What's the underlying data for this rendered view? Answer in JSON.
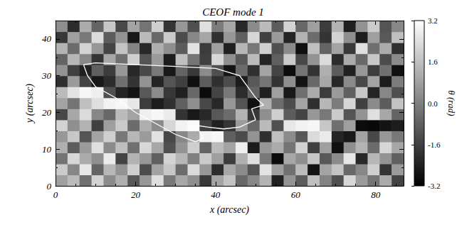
{
  "chart_data": {
    "type": "heatmap",
    "title": "CEOF mode 1",
    "x_label": "x (arcsec)",
    "y_label": "y (arcsec)",
    "xlim": [
      0,
      87
    ],
    "ylim": [
      0,
      45
    ],
    "xticks": [
      0,
      20,
      40,
      60,
      80
    ],
    "yticks": [
      0,
      10,
      20,
      30,
      40
    ],
    "cells": {
      "x": [
        1.5,
        4.5,
        7.5,
        10.5,
        13.5,
        16.5,
        19.5,
        22.5,
        25.5,
        28.5,
        31.5,
        34.5,
        37.5,
        40.5,
        43.5,
        46.5,
        49.5,
        52.5,
        55.5,
        58.5,
        61.5,
        64.5,
        67.5,
        70.5,
        73.5,
        76.5,
        79.5,
        82.5,
        85.5
      ],
      "y": [
        1.5,
        4.5,
        7.5,
        10.5,
        13.5,
        16.5,
        19.5,
        22.5,
        25.5,
        28.5,
        31.5,
        34.5,
        37.5,
        40.5,
        43.5
      ],
      "values": [
        [
          0.8,
          1.5,
          -0.4,
          2.1,
          0.3,
          1.2,
          -1.0,
          0.6,
          2.4,
          -0.2,
          1.0,
          0.4,
          -1.8,
          0.9,
          1.7,
          -0.6,
          0.2,
          1.3,
          -2.4,
          0.5,
          -0.9,
          1.6,
          0.1,
          -1.2,
          2.2,
          0.7,
          -0.3,
          1.1,
          -1.5
        ],
        [
          1.9,
          0.2,
          2.6,
          -0.7,
          1.4,
          0.5,
          2.0,
          -1.3,
          0.9,
          1.8,
          -0.5,
          2.3,
          0.6,
          -2.1,
          1.0,
          0.3,
          -1.1,
          2.5,
          0.8,
          -0.4,
          1.5,
          -2.7,
          0.9,
          1.7,
          -0.6,
          0.2,
          2.0,
          -1.9,
          0.7
        ],
        [
          -0.3,
          2.2,
          1.1,
          0.4,
          2.7,
          -1.5,
          1.3,
          0.6,
          -0.8,
          2.1,
          1.4,
          0.0,
          1.9,
          0.8,
          -1.7,
          1.2,
          2.4,
          -0.2,
          -2.9,
          1.0,
          0.4,
          1.8,
          -1.0,
          0.3,
          2.6,
          -2.2,
          1.4,
          0.5,
          -0.8
        ],
        [
          1.2,
          -0.9,
          0.7,
          2.4,
          0.3,
          1.6,
          -0.4,
          2.2,
          1.0,
          -1.2,
          0.5,
          2.0,
          -0.7,
          1.5,
          0.9,
          2.8,
          -2.5,
          0.6,
          1.1,
          -0.3,
          2.1,
          -1.6,
          0.8,
          -2.8,
          0.4,
          1.3,
          -0.5,
          2.2,
          1.0
        ],
        [
          0.6,
          1.8,
          -1.1,
          0.9,
          2.0,
          -0.2,
          1.4,
          0.7,
          2.5,
          -1.4,
          0.2,
          1.1,
          2.9,
          3.0,
          -0.8,
          -1.3,
          0.5,
          -2.0,
          1.6,
          0.3,
          -1.0,
          2.3,
          2.7,
          -2.3,
          -2.6,
          0.9,
          -1.4,
          0.6,
          -0.2
        ],
        [
          2.1,
          0.4,
          1.3,
          -1.6,
          0.8,
          1.9,
          -0.5,
          1.2,
          0.3,
          2.2,
          2.9,
          3.1,
          -1.6,
          -2.4,
          -1.9,
          0.7,
          -0.6,
          1.5,
          -1.2,
          2.6,
          2.9,
          3.0,
          1.8,
          -0.4,
          0.8,
          -2.9,
          -3.0,
          -2.7,
          -2.5
        ],
        [
          -1.4,
          1.0,
          2.3,
          0.2,
          -0.6,
          1.5,
          0.9,
          2.8,
          3.0,
          2.7,
          -1.9,
          -2.6,
          -2.2,
          -1.0,
          -0.5,
          1.3,
          -1.8,
          0.4,
          2.0,
          -0.9,
          -1.5,
          0.6,
          -0.2,
          1.9,
          -1.1,
          0.5,
          2.4,
          1.0,
          -0.7
        ],
        [
          0.9,
          -0.3,
          1.6,
          2.4,
          2.9,
          3.0,
          2.6,
          -1.7,
          -2.5,
          -2.0,
          -0.8,
          0.4,
          -1.4,
          -2.2,
          0.6,
          -1.1,
          -2.8,
          1.2,
          -0.5,
          -1.3,
          0.9,
          -2.0,
          1.4,
          -0.1,
          2.2,
          -1.6,
          0.3,
          -0.9,
          1.7
        ],
        [
          1.5,
          2.5,
          3.0,
          2.8,
          -1.2,
          -2.3,
          -2.7,
          -1.0,
          0.3,
          -1.8,
          -2.4,
          -0.6,
          -2.9,
          -1.5,
          -0.2,
          -2.1,
          -0.7,
          -2.4,
          0.8,
          -2.6,
          -0.4,
          1.1,
          -1.7,
          0.7,
          -0.8,
          1.8,
          -2.3,
          0.2,
          -1.2
        ],
        [
          -2.0,
          0.7,
          -1.5,
          -2.6,
          -2.1,
          -0.4,
          -1.9,
          0.5,
          -2.3,
          -1.1,
          -1.6,
          -2.8,
          -0.9,
          -2.0,
          -1.3,
          -2.5,
          -1.0,
          -0.3,
          -1.9,
          0.4,
          -2.7,
          -0.6,
          1.0,
          -2.2,
          0.3,
          -1.4,
          0.9,
          -2.5,
          -0.1
        ],
        [
          0.5,
          -1.6,
          -2.4,
          -0.8,
          -1.7,
          0.6,
          -2.2,
          -1.4,
          -0.2,
          -2.6,
          -0.7,
          -1.8,
          0.3,
          -1.2,
          -2.7,
          -0.5,
          -2.0,
          0.9,
          -1.5,
          -2.9,
          -0.3,
          -1.9,
          1.2,
          -0.9,
          -2.4,
          0.6,
          -1.7,
          -0.4,
          -2.8
        ],
        [
          -0.7,
          1.4,
          0.2,
          -1.9,
          1.0,
          -0.4,
          2.0,
          -1.1,
          0.7,
          -2.5,
          1.6,
          -0.3,
          -1.6,
          2.2,
          0.4,
          -1.0,
          1.5,
          -2.3,
          -0.8,
          1.9,
          -1.4,
          0.5,
          2.3,
          -2.1,
          1.1,
          -0.6,
          1.8,
          -1.3,
          0.3
        ],
        [
          1.3,
          -0.5,
          2.1,
          0.6,
          -1.5,
          1.7,
          0.1,
          -2.2,
          1.2,
          0.4,
          -0.9,
          2.5,
          -1.7,
          0.8,
          -2.4,
          1.4,
          -0.2,
          2.0,
          -1.2,
          0.3,
          -2.8,
          1.6,
          -0.7,
          0.9,
          -1.8,
          2.4,
          -0.4,
          1.1,
          -2.0
        ],
        [
          -1.8,
          0.8,
          -0.2,
          2.3,
          -0.9,
          0.5,
          -2.6,
          1.5,
          -0.6,
          1.9,
          -1.3,
          0.2,
          1.0,
          -2.0,
          0.6,
          -0.8,
          2.2,
          -1.6,
          0.7,
          -2.3,
          1.3,
          -0.5,
          -1.9,
          2.1,
          0.4,
          -2.5,
          0.8,
          -1.0,
          1.6
        ],
        [
          0.4,
          -2.1,
          1.1,
          -0.7,
          1.8,
          -1.4,
          0.9,
          -0.3,
          2.0,
          -1.9,
          0.6,
          -1.2,
          2.4,
          -0.1,
          1.0,
          -2.2,
          0.3,
          1.5,
          -0.9,
          2.1,
          -0.6,
          0.8,
          -1.7,
          1.3,
          -2.4,
          0.5,
          1.9,
          -1.1,
          0.2
        ]
      ]
    },
    "colorbar": {
      "label": "θ (rad)",
      "range": [
        -3.2,
        3.2
      ],
      "ticks": [
        -3.2,
        -1.6,
        {
          "value": 0,
          "label": "0.0"
        },
        1.6,
        3.2
      ],
      "colors": [
        "#000000",
        "#ffffff"
      ]
    },
    "contour": {
      "color": "#ffffff",
      "points": [
        [
          7,
          33
        ],
        [
          10,
          33.5
        ],
        [
          20,
          33
        ],
        [
          30,
          32.5
        ],
        [
          40,
          32
        ],
        [
          46,
          30
        ],
        [
          48,
          27
        ],
        [
          50,
          24
        ],
        [
          52,
          22
        ],
        [
          49,
          21
        ],
        [
          50,
          18
        ],
        [
          46,
          16
        ],
        [
          42,
          15.5
        ],
        [
          38,
          16
        ],
        [
          35,
          16.5
        ],
        [
          37,
          13
        ],
        [
          35,
          12
        ],
        [
          30,
          14
        ],
        [
          25,
          17
        ],
        [
          20,
          20
        ],
        [
          15,
          24
        ],
        [
          10,
          27
        ],
        [
          8,
          30
        ],
        [
          7,
          33
        ]
      ]
    }
  }
}
